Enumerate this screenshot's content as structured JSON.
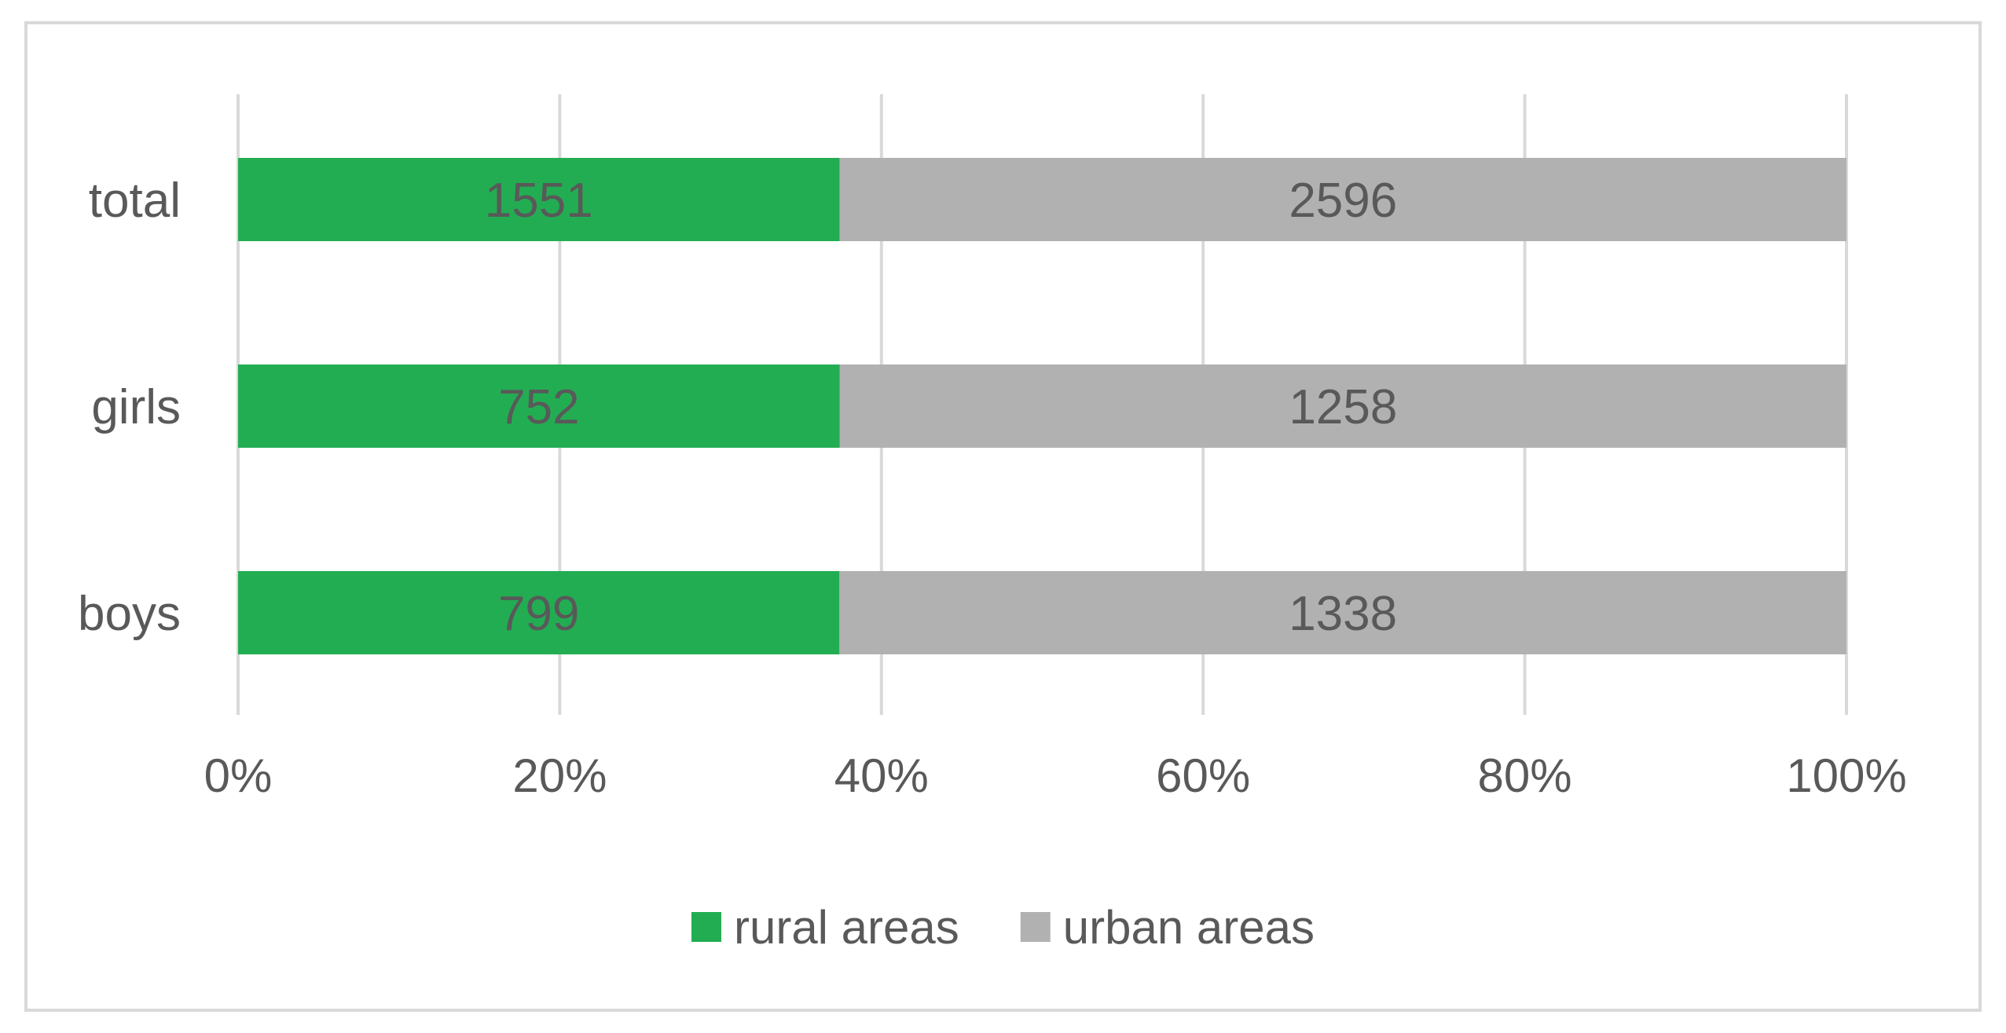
{
  "chart_data": {
    "type": "bar",
    "orientation": "horizontal",
    "stacking": "percent",
    "categories": [
      "total",
      "girls",
      "boys"
    ],
    "series": [
      {
        "name": "rural areas",
        "color": "#23ad53",
        "values": [
          1551,
          752,
          799
        ]
      },
      {
        "name": "urban areas",
        "color": "#b1b1b1",
        "values": [
          2596,
          1258,
          1338
        ]
      }
    ],
    "x_ticks": [
      "0%",
      "20%",
      "40%",
      "60%",
      "80%",
      "100%"
    ],
    "xlim": [
      0,
      100
    ],
    "grid": "vertical",
    "legend": "bottom-center",
    "colors": {
      "gridline": "#d9d9d9",
      "border": "#d9d9d9",
      "text": "#595959"
    }
  }
}
